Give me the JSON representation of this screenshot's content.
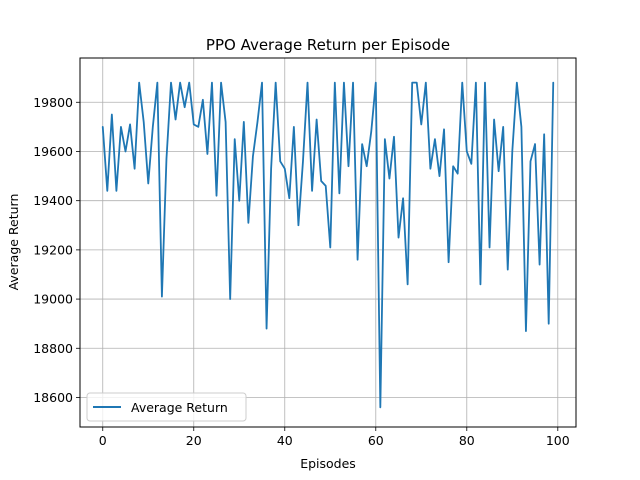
{
  "chart_data": {
    "type": "line",
    "title": "PPO Average Return per Episode",
    "xlabel": "Episodes",
    "ylabel": "Average Return",
    "xlim": [
      -5,
      104
    ],
    "ylim": [
      18480,
      19980
    ],
    "x_ticks": [
      0,
      20,
      40,
      60,
      80,
      100
    ],
    "y_ticks": [
      18600,
      18800,
      19000,
      19200,
      19400,
      19600,
      19800
    ],
    "grid": true,
    "legend": "lower-left",
    "series": [
      {
        "name": "Average Return",
        "color": "#1f77b4",
        "x": [
          0,
          1,
          2,
          3,
          4,
          5,
          6,
          7,
          8,
          9,
          10,
          11,
          12,
          13,
          14,
          15,
          16,
          17,
          18,
          19,
          20,
          21,
          22,
          23,
          24,
          25,
          26,
          27,
          28,
          29,
          30,
          31,
          32,
          33,
          34,
          35,
          36,
          37,
          38,
          39,
          40,
          41,
          42,
          43,
          44,
          45,
          46,
          47,
          48,
          49,
          50,
          51,
          52,
          53,
          54,
          55,
          56,
          57,
          58,
          59,
          60,
          61,
          62,
          63,
          64,
          65,
          66,
          67,
          68,
          69,
          70,
          71,
          72,
          73,
          74,
          75,
          76,
          77,
          78,
          79,
          80,
          81,
          82,
          83,
          84,
          85,
          86,
          87,
          88,
          89,
          90,
          91,
          92,
          93,
          94,
          95,
          96,
          97,
          98,
          99
        ],
        "values": [
          19700,
          19440,
          19750,
          19440,
          19700,
          19600,
          19710,
          19530,
          19880,
          19720,
          19470,
          19700,
          19880,
          19010,
          19570,
          19880,
          19730,
          19880,
          19780,
          19880,
          19710,
          19700,
          19810,
          19590,
          19880,
          19420,
          19880,
          19720,
          19000,
          19650,
          19400,
          19720,
          19310,
          19580,
          19720,
          19880,
          18880,
          19530,
          19880,
          19560,
          19530,
          19410,
          19700,
          19300,
          19560,
          19880,
          19440,
          19730,
          19480,
          19460,
          19210,
          19880,
          19430,
          19880,
          19540,
          19880,
          19160,
          19630,
          19540,
          19680,
          19880,
          18560,
          19650,
          19490,
          19660,
          19250,
          19410,
          19060,
          19880,
          19880,
          19710,
          19880,
          19530,
          19650,
          19500,
          19690,
          19150,
          19540,
          19510,
          19880,
          19600,
          19550,
          19880,
          19060,
          19880,
          19210,
          19730,
          19520,
          19700,
          19120,
          19600,
          19880,
          19700,
          18870,
          19560,
          19630,
          19140,
          19670,
          18900,
          19880
        ]
      }
    ]
  }
}
